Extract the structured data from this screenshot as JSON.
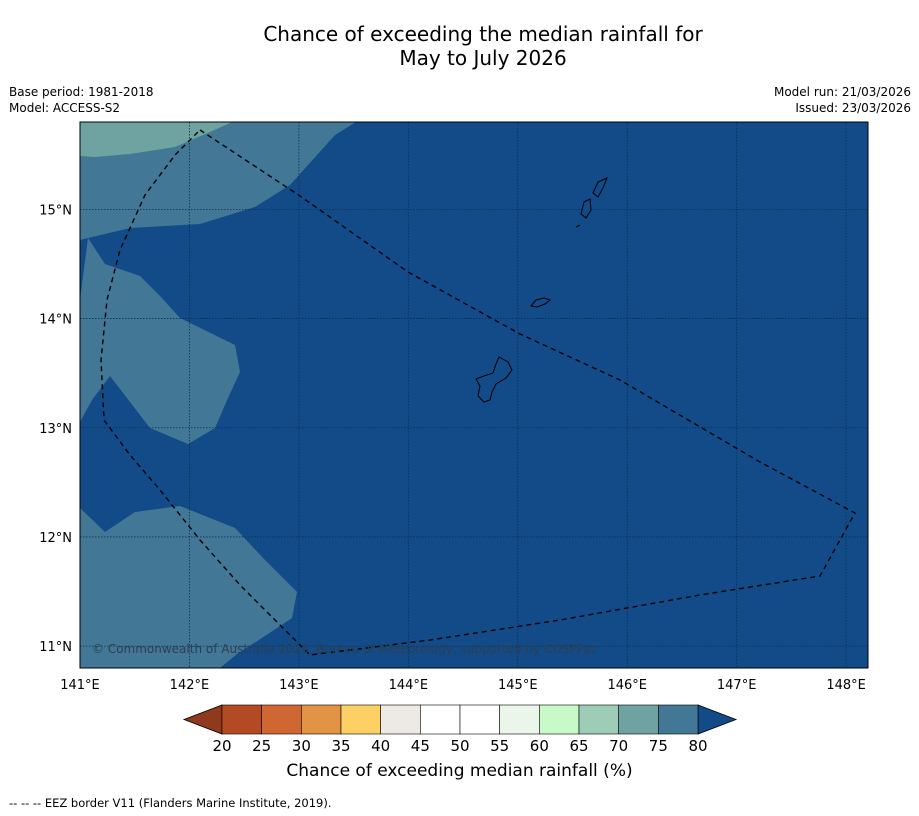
{
  "title": {
    "line1": "Chance of exceeding the median rainfall for",
    "line2": "May to July 2026"
  },
  "meta": {
    "base_period": "Base period: 1981-2018",
    "model": "Model: ACCESS-S2",
    "model_run": "Model run: 21/03/2026",
    "issued": "Issued: 23/03/2026"
  },
  "map": {
    "lon_range": [
      141,
      148.2
    ],
    "lat_range": [
      10.8,
      15.8
    ],
    "x_ticks": [
      "141°E",
      "142°E",
      "143°E",
      "144°E",
      "145°E",
      "146°E",
      "147°E",
      "148°E"
    ],
    "y_ticks": [
      "11°N",
      "12°N",
      "13°N",
      "14°N",
      "15°N"
    ],
    "copyright": "© Commonwealth of Australia 2026, Bureau of Meteorology, supported by COSPPac",
    "background_category": "75-80"
  },
  "colorbar": {
    "title": "Chance of exceeding median rainfall (%)",
    "tick_labels": [
      "20",
      "25",
      "30",
      "35",
      "40",
      "45",
      "50",
      "55",
      "60",
      "65",
      "70",
      "75",
      "80"
    ],
    "under_color": "#8f3a1c",
    "over_color": "#124b87",
    "colors": [
      "#b34a24",
      "#d06733",
      "#e29346",
      "#fdd066",
      "#ede9e4",
      "#ffffff",
      "#ffffff",
      "#e9f6e9",
      "#c8f9c8",
      "#9dcdb6",
      "#6ea3a1",
      "#427896"
    ]
  },
  "footnote": "-- -- -- EEZ border V11 (Flanders Marine Institute, 2019)."
}
